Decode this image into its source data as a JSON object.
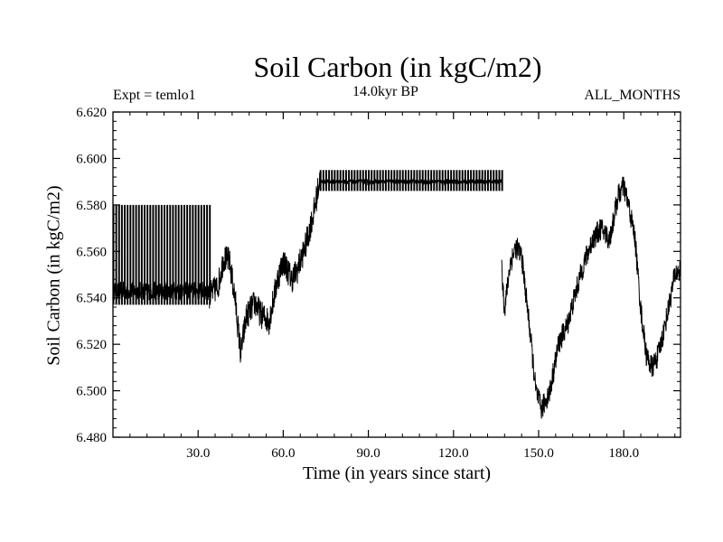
{
  "chart_data": {
    "type": "line",
    "title": "Soil Carbon (in kgC/m2)",
    "subtitle": "14.0kyr BP",
    "left_annotation": "Expt = temlo1",
    "right_annotation": "ALL_MONTHS",
    "xlabel": "Time (in years since start)",
    "ylabel": "Soil Carbon (in kgC/m2)",
    "xlim": [
      0,
      200
    ],
    "ylim": [
      6.48,
      6.62
    ],
    "x_ticks": [
      30,
      60,
      90,
      120,
      150,
      180
    ],
    "x_tick_labels": [
      "30.0",
      "60.0",
      "90.0",
      "120.0",
      "150.0",
      "180.0"
    ],
    "y_ticks": [
      6.48,
      6.5,
      6.52,
      6.54,
      6.56,
      6.58,
      6.6,
      6.62
    ],
    "y_tick_labels": [
      "6.480",
      "6.500",
      "6.520",
      "6.540",
      "6.560",
      "6.580",
      "6.600",
      "6.620"
    ],
    "grid": false,
    "series": [
      {
        "color": "#000000",
        "segments": [
          {
            "x_start": 0,
            "x_end": 34,
            "pattern": "square_oscillation",
            "low": 6.537,
            "high": 6.58,
            "period": 1,
            "base_center": 6.543,
            "base_amplitude": 0.004
          },
          {
            "x_start": 34,
            "x_end": 73,
            "pattern": "noisy_trend",
            "amplitude": 0.006,
            "points": [
              [
                34,
                6.541
              ],
              [
                37,
                6.545
              ],
              [
                39,
                6.557
              ],
              [
                41,
                6.556
              ],
              [
                43,
                6.54
              ],
              [
                45,
                6.516
              ],
              [
                47,
                6.532
              ],
              [
                50,
                6.538
              ],
              [
                52,
                6.533
              ],
              [
                55,
                6.53
              ],
              [
                58,
                6.548
              ],
              [
                60,
                6.556
              ],
              [
                63,
                6.548
              ],
              [
                65,
                6.552
              ],
              [
                68,
                6.563
              ],
              [
                71,
                6.578
              ],
              [
                73,
                6.592
              ]
            ]
          },
          {
            "x_start": 73,
            "x_end": 137,
            "pattern": "square_oscillation",
            "low": 6.586,
            "high": 6.595,
            "period": 1,
            "base_center": 6.59,
            "base_amplitude": 0.001
          },
          {
            "x_start": 137,
            "x_end": 200,
            "pattern": "noisy_trend",
            "amplitude": 0.005,
            "points": [
              [
                137,
                6.552
              ],
              [
                138,
                6.535
              ],
              [
                140,
                6.555
              ],
              [
                142,
                6.562
              ],
              [
                144,
                6.558
              ],
              [
                147,
                6.525
              ],
              [
                149,
                6.5
              ],
              [
                151,
                6.492
              ],
              [
                154,
                6.5
              ],
              [
                157,
                6.52
              ],
              [
                160,
                6.528
              ],
              [
                163,
                6.542
              ],
              [
                166,
                6.555
              ],
              [
                169,
                6.565
              ],
              [
                172,
                6.57
              ],
              [
                175,
                6.565
              ],
              [
                178,
                6.584
              ],
              [
                180,
                6.588
              ],
              [
                182,
                6.578
              ],
              [
                184,
                6.565
              ],
              [
                186,
                6.535
              ],
              [
                188,
                6.515
              ],
              [
                190,
                6.51
              ],
              [
                192,
                6.515
              ],
              [
                194,
                6.525
              ],
              [
                196,
                6.537
              ],
              [
                198,
                6.55
              ],
              [
                200,
                6.552
              ]
            ]
          }
        ]
      }
    ]
  }
}
